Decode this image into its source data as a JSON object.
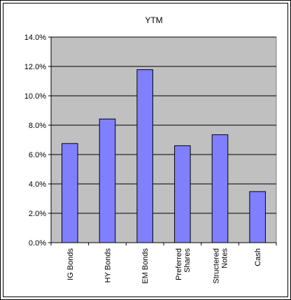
{
  "chart_data": {
    "type": "bar",
    "title": "YTM",
    "categories": [
      "IG Bonds",
      "HY Bonds",
      "EM Bonds",
      "Preferred Shares",
      "Structered Notes",
      "Cash"
    ],
    "category_label_lines": [
      [
        "IG Bonds"
      ],
      [
        "HY Bonds"
      ],
      [
        "EM Bonds"
      ],
      [
        "Preferred",
        "Shares"
      ],
      [
        "Structered",
        "Notes"
      ],
      [
        "Cash"
      ]
    ],
    "values": [
      6.75,
      8.42,
      11.78,
      6.6,
      7.35,
      3.48
    ],
    "ylim": [
      0,
      14
    ],
    "yticks": [
      "0.0%",
      "2.0%",
      "4.0%",
      "6.0%",
      "8.0%",
      "10.0%",
      "12.0%",
      "14.0%"
    ],
    "grid": true,
    "colors": {
      "bar_fill": "#8080ff",
      "bar_stroke": "#000000",
      "plot_background": "#c0c0c0",
      "gridline": "#000000"
    }
  }
}
